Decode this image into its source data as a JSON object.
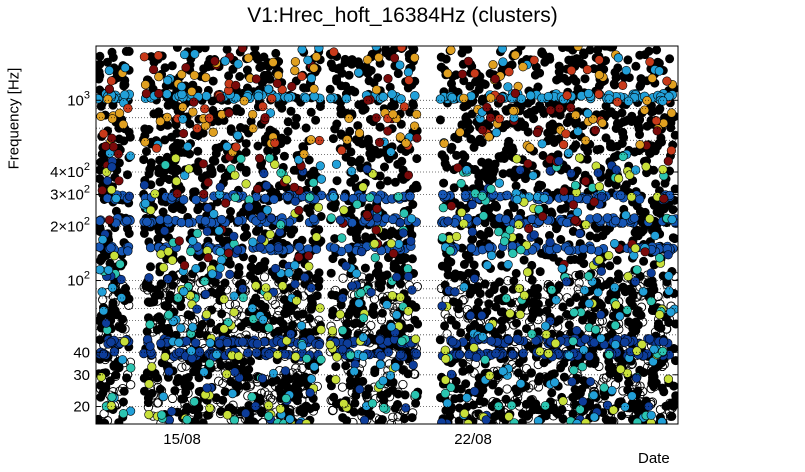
{
  "chart_data": {
    "type": "scatter",
    "title": "V1:Hrec_hoft_16384Hz (clusters)",
    "xlabel": "Date",
    "ylabel": "Frequency [Hz]",
    "yscale": "log",
    "ylim": [
      16,
      2000
    ],
    "x_tick_labels": [
      {
        "label": "15/08",
        "x": 1.9
      },
      {
        "label": "22/08",
        "x": 9.0
      }
    ],
    "xlim": [
      -0.2,
      14.0
    ],
    "y_ticks": [
      {
        "value": 20,
        "label": "20"
      },
      {
        "value": 30,
        "label": "30"
      },
      {
        "value": 40,
        "label": "40"
      },
      {
        "value": 100,
        "base": "10",
        "exp": "2"
      },
      {
        "value": 200,
        "base": "2×10",
        "exp": "2"
      },
      {
        "value": 300,
        "base": "3×10",
        "exp": "2"
      },
      {
        "value": 400,
        "base": "4×10",
        "exp": "2"
      },
      {
        "value": 1000,
        "base": "10",
        "exp": "3"
      }
    ],
    "gridlines_at": [
      20,
      30,
      40,
      50,
      60,
      70,
      80,
      90,
      100,
      200,
      300,
      400,
      500,
      600,
      700,
      800,
      900,
      1000
    ],
    "data_gaps_x": [
      [
        0.65,
        0.95
      ],
      [
        5.3,
        5.5
      ],
      [
        5.7,
        5.75
      ],
      [
        7.65,
        8.2
      ]
    ],
    "frequency_bands": [
      {
        "f": 46,
        "color": "#0d3d9a"
      },
      {
        "f": 39,
        "color": "#0d3d9a"
      },
      {
        "f": 150,
        "color": "#1656b5"
      },
      {
        "f": 215,
        "color": "#1656b5"
      },
      {
        "f": 290,
        "color": "#1656b5"
      },
      {
        "f": 1050,
        "color": "#22a0d8"
      }
    ],
    "colors": {
      "background": "#000000",
      "empty_marker": "#000000",
      "low": "#0d3d9a",
      "mid": "#22a0d8",
      "cyan": "#2bc4b0",
      "yellow": "#c8e03a",
      "orange": "#e0a020",
      "red": "#c83a1a",
      "darkred": "#7a0a0a"
    }
  }
}
